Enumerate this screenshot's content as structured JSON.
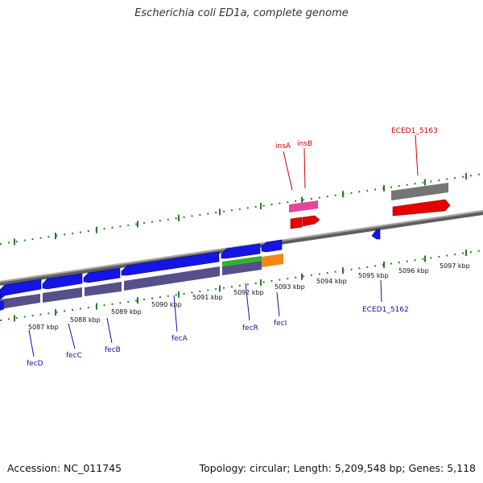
{
  "title": "Escherichia coli ED1a, complete genome",
  "footer": {
    "accession": "Accession: NC_011745",
    "summary": "Topology: circular; Length: 5,209,548 bp; Genes: 5,118"
  },
  "colors": {
    "backbone": "#8c8c8c",
    "tick": "#2a7a2a",
    "plus_strand_cds": "#1515e6",
    "gene_shadow": "#56508a",
    "forward_gene_label": "#cc0000",
    "reverse_gene_label": "#1010a8",
    "pink_feature": "#e8449c",
    "green_feature": "#2db32d",
    "orange_feature": "#f0891a",
    "gray_feature": "#757575"
  },
  "scale_labels": [
    "5087 kbp",
    "5088 kbp",
    "5089 kbp",
    "5090 kbp",
    "5091 kbp",
    "5092 kbp",
    "5093 kbp",
    "5094 kbp",
    "5095 kbp",
    "5096 kbp",
    "5097 kbp"
  ],
  "genes_lower": [
    {
      "name": "fecD"
    },
    {
      "name": "fecC"
    },
    {
      "name": "fecB"
    },
    {
      "name": "fecA"
    },
    {
      "name": "fecR"
    },
    {
      "name": "fecI"
    },
    {
      "name": "ECED1_5162"
    }
  ],
  "genes_upper": [
    {
      "name": "insA"
    },
    {
      "name": "insB"
    },
    {
      "name": "ECED1_5163"
    }
  ]
}
